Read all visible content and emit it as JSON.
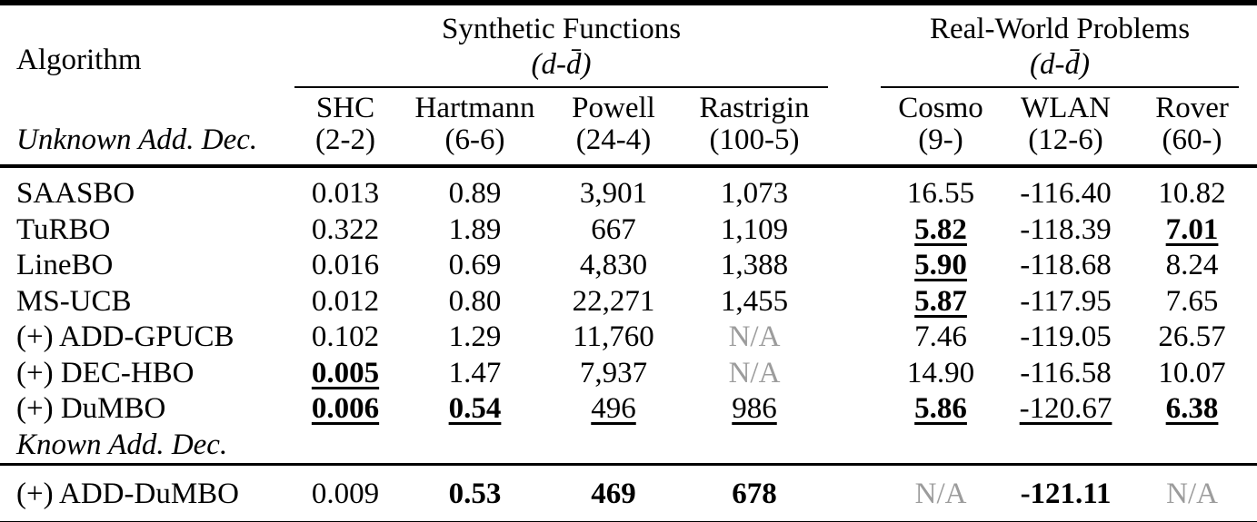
{
  "table": {
    "header": {
      "algorithm_label": "Algorithm",
      "section_label_unknown": "Unknown Add. Dec.",
      "groups": [
        {
          "title": "Synthetic Functions",
          "dims": "(d-d̄)",
          "span": 4
        },
        {
          "title": "Real-World Problems",
          "dims": "(d-d̄)",
          "span": 3
        }
      ],
      "columns": [
        {
          "name": "SHC",
          "dims": "(2-2)",
          "group": "synthetic"
        },
        {
          "name": "Hartmann",
          "dims": "(6-6)",
          "group": "synthetic"
        },
        {
          "name": "Powell",
          "dims": "(24-4)",
          "group": "synthetic"
        },
        {
          "name": "Rastrigin",
          "dims": "(100-5)",
          "group": "synthetic"
        },
        {
          "name": "Cosmo",
          "dims": "(9-)",
          "group": "real-world"
        },
        {
          "name": "WLAN",
          "dims": "(12-6)",
          "group": "real-world"
        },
        {
          "name": "Rover",
          "dims": "(60-)",
          "group": "real-world"
        }
      ]
    },
    "rows": [
      {
        "label": "SAASBO",
        "italic": false,
        "cells": [
          {
            "v": "0.013"
          },
          {
            "v": "0.89"
          },
          {
            "v": "3,901"
          },
          {
            "v": "1,073"
          },
          {
            "v": "16.55"
          },
          {
            "v": "-116.40"
          },
          {
            "v": "10.82"
          }
        ]
      },
      {
        "label": "TuRBO",
        "italic": false,
        "cells": [
          {
            "v": "0.322"
          },
          {
            "v": "1.89"
          },
          {
            "v": "667"
          },
          {
            "v": "1,109"
          },
          {
            "v": "5.82",
            "bold": true,
            "underline": true
          },
          {
            "v": "-118.39"
          },
          {
            "v": "7.01",
            "bold": true,
            "underline": true
          }
        ]
      },
      {
        "label": "LineBO",
        "italic": false,
        "cells": [
          {
            "v": "0.016"
          },
          {
            "v": "0.69"
          },
          {
            "v": "4,830"
          },
          {
            "v": "1,388"
          },
          {
            "v": "5.90",
            "bold": true,
            "underline": true
          },
          {
            "v": "-118.68"
          },
          {
            "v": "8.24"
          }
        ]
      },
      {
        "label": "MS-UCB",
        "italic": false,
        "cells": [
          {
            "v": "0.012"
          },
          {
            "v": "0.80"
          },
          {
            "v": "22,271"
          },
          {
            "v": "1,455"
          },
          {
            "v": "5.87",
            "bold": true,
            "underline": true
          },
          {
            "v": "-117.95"
          },
          {
            "v": "7.65"
          }
        ]
      },
      {
        "label": "(+) ADD-GPUCB",
        "italic": false,
        "cells": [
          {
            "v": "0.102"
          },
          {
            "v": "1.29"
          },
          {
            "v": "11,760"
          },
          {
            "v": "N/A",
            "na": true
          },
          {
            "v": "7.46"
          },
          {
            "v": "-119.05"
          },
          {
            "v": "26.57"
          }
        ]
      },
      {
        "label": "(+) DEC-HBO",
        "italic": false,
        "cells": [
          {
            "v": "0.005",
            "bold": true,
            "underline": true
          },
          {
            "v": "1.47"
          },
          {
            "v": "7,937"
          },
          {
            "v": "N/A",
            "na": true
          },
          {
            "v": "14.90"
          },
          {
            "v": "-116.58"
          },
          {
            "v": "10.07"
          }
        ]
      },
      {
        "label": "(+) DuMBO",
        "italic": false,
        "cells": [
          {
            "v": "0.006",
            "bold": true,
            "underline": true
          },
          {
            "v": "0.54",
            "bold": true,
            "underline": true
          },
          {
            "v": "496",
            "underline": true
          },
          {
            "v": "986",
            "underline": true
          },
          {
            "v": "5.86",
            "bold": true,
            "underline": true
          },
          {
            "v": "-120.67",
            "underline": true
          },
          {
            "v": "6.38",
            "bold": true,
            "underline": true
          }
        ]
      },
      {
        "label": "Known Add. Dec.",
        "italic": true,
        "cells": []
      }
    ],
    "bottom_row": {
      "label": "(+) ADD-DuMBO",
      "italic": false,
      "cells": [
        {
          "v": "0.009"
        },
        {
          "v": "0.53",
          "bold": true
        },
        {
          "v": "469",
          "bold": true
        },
        {
          "v": "678",
          "bold": true
        },
        {
          "v": "N/A",
          "na": true
        },
        {
          "v": "-121.11",
          "bold": true
        },
        {
          "v": "N/A",
          "na": true
        }
      ]
    },
    "colors": {
      "text": "#000000",
      "na_text": "#9c9c9c",
      "background": "#ffffff"
    }
  }
}
